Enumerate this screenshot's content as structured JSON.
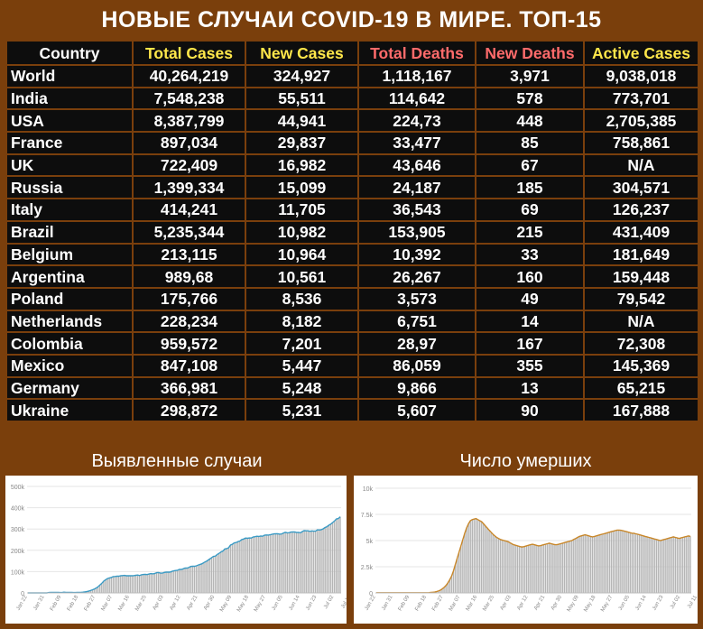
{
  "title": "НОВЫЕ СЛУЧАИ COVID-19 В МИРЕ. ТОП-15",
  "table": {
    "headers": [
      {
        "label": "Country",
        "color": "#ffffff"
      },
      {
        "label": "Total Cases",
        "color": "#ffe74a"
      },
      {
        "label": "New Cases",
        "color": "#ffe74a"
      },
      {
        "label": "Total Deaths",
        "color": "#ff6b6b"
      },
      {
        "label": "New Deaths",
        "color": "#ff6b6b"
      },
      {
        "label": "Active Cases",
        "color": "#ffe74a"
      }
    ],
    "rows": [
      [
        "World",
        "40,264,219",
        "324,927",
        "1,118,167",
        "3,971",
        "9,038,018"
      ],
      [
        "India",
        "7,548,238",
        "55,511",
        "114,642",
        "578",
        "773,701"
      ],
      [
        "USA",
        "8,387,799",
        "44,941",
        "224,73",
        "448",
        "2,705,385"
      ],
      [
        "France",
        "897,034",
        "29,837",
        "33,477",
        "85",
        "758,861"
      ],
      [
        "UK",
        "722,409",
        "16,982",
        "43,646",
        "67",
        "N/A"
      ],
      [
        "Russia",
        "1,399,334",
        "15,099",
        "24,187",
        "185",
        "304,571"
      ],
      [
        "Italy",
        "414,241",
        "11,705",
        "36,543",
        "69",
        "126,237"
      ],
      [
        "Brazil",
        "5,235,344",
        "10,982",
        "153,905",
        "215",
        "431,409"
      ],
      [
        "Belgium",
        "213,115",
        "10,964",
        "10,392",
        "33",
        "181,649"
      ],
      [
        "Argentina",
        "989,68",
        "10,561",
        "26,267",
        "160",
        "159,448"
      ],
      [
        "Poland",
        "175,766",
        "8,536",
        "3,573",
        "49",
        "79,542"
      ],
      [
        "Netherlands",
        "228,234",
        "8,182",
        "6,751",
        "14",
        "N/A"
      ],
      [
        "Colombia",
        "959,572",
        "7,201",
        "28,97",
        "167",
        "72,308"
      ],
      [
        "Mexico",
        "847,108",
        "5,447",
        "86,059",
        "355",
        "145,369"
      ],
      [
        "Germany",
        "366,981",
        "5,248",
        "9,866",
        "13",
        "65,215"
      ],
      [
        "Ukraine",
        "298,872",
        "5,231",
        "5,607",
        "90",
        "167,888"
      ]
    ]
  },
  "panels": {
    "left_title": "Выявленные случаи",
    "right_title": "Число умерших"
  },
  "chart_data": [
    {
      "type": "bar",
      "line_color": "#3a9ac4",
      "bar_color": "#b5b5b5",
      "ylim": [
        0,
        500000
      ],
      "yticks": [
        "0",
        "100k",
        "200k",
        "300k",
        "400k",
        "500k"
      ],
      "ytick_values": [
        0,
        100000,
        200000,
        300000,
        400000,
        500000
      ],
      "x_tick_labels": [
        "Jan 22",
        "Jan 31",
        "Feb 09",
        "Feb 18",
        "Feb 27",
        "Mar 07",
        "Mar 16",
        "Mar 25",
        "Apr 03",
        "Apr 12",
        "Apr 21",
        "Apr 30",
        "May 09",
        "May 18",
        "May 27",
        "Jun 05",
        "Jun 14",
        "Jun 23",
        "Jul 02",
        "Jul 11",
        "Jul 20",
        "Jul 29",
        "Aug 07",
        "Aug 16",
        "Aug 25",
        "Sep 03",
        "Sep 12",
        "Sep 21",
        "Sep 30",
        "Oct 09",
        "Oct 18"
      ],
      "x_tick_positions": [
        0,
        9,
        18,
        27,
        36,
        45,
        54,
        63,
        72,
        81,
        90,
        99,
        108,
        117,
        126,
        135,
        144,
        153,
        162,
        171,
        180,
        189,
        198,
        207,
        216,
        225,
        234,
        243,
        252,
        261,
        270
      ],
      "moving_average": [
        0,
        0,
        0,
        0,
        0,
        0,
        0,
        0,
        0,
        0,
        0,
        1500,
        2000,
        2500,
        2000,
        2500,
        2000,
        1500,
        1500,
        3500,
        2000,
        2500,
        2500,
        2000,
        1500,
        1500,
        2000,
        2500,
        2500,
        3500,
        4500,
        6000,
        8000,
        11000,
        14500,
        18000,
        23000,
        28500,
        37000,
        45000,
        55000,
        62000,
        67500,
        70500,
        72000,
        76500,
        77000,
        79000,
        78500,
        80500,
        81500,
        82000,
        80500,
        80500,
        80500,
        80500,
        81500,
        82500,
        84000,
        81500,
        85000,
        86500,
        87000,
        86000,
        89000,
        90500,
        89500,
        91000,
        95000,
        95500,
        93000,
        93000,
        96000,
        97500,
        97500,
        97500,
        101000,
        104000,
        105000,
        106500,
        110000,
        110000,
        113000,
        117000,
        116500,
        119000,
        124000,
        125000,
        125000,
        127000,
        131000,
        134000,
        137000,
        143000,
        147000,
        152500,
        159000,
        165000,
        171500,
        172500,
        180500,
        185500,
        192500,
        196000,
        206500,
        207500,
        212000,
        224500,
        228500,
        235000,
        236500,
        240500,
        243500,
        250500,
        253000,
        257500,
        256500,
        258000,
        257500,
        262500,
        264000,
        266000,
        265000,
        267000,
        266000,
        271000,
        272000,
        271500,
        273000,
        275500,
        277000,
        277500,
        278000,
        276000,
        276500,
        281500,
        284500,
        282000,
        282500,
        285500,
        286000,
        286500,
        283500,
        284500,
        282000,
        288000,
        292500,
        291500,
        291500,
        289000,
        291000,
        290000,
        290000,
        296000,
        295500,
        297000,
        301000,
        307000,
        311000,
        318000,
        323000,
        330000,
        337500,
        347500,
        349000,
        357500
      ],
      "values": [
        0,
        0,
        0,
        0,
        0,
        0,
        0,
        0,
        0,
        0,
        0,
        1500,
        2000,
        2500,
        2000,
        2500,
        2000,
        1500,
        1500,
        3500,
        2000,
        2500,
        2500,
        2000,
        1500,
        1500,
        2000,
        2500,
        2500,
        3500,
        4500,
        6000,
        8000,
        11000,
        14500,
        18000,
        23000,
        28500,
        37000,
        45000,
        55000,
        62000,
        67500,
        70500,
        72000,
        76500,
        77000,
        79000,
        78500,
        80500,
        81500,
        82000,
        80500,
        80500,
        80500,
        80500,
        81500,
        82500,
        84000,
        81500,
        85000,
        86500,
        87000,
        86000,
        89000,
        90500,
        89500,
        91000,
        95000,
        95500,
        93000,
        93000,
        96000,
        97500,
        97500,
        97500,
        101000,
        104000,
        105000,
        106500,
        110000,
        110000,
        113000,
        117000,
        116500,
        119000,
        124000,
        125000,
        125000,
        127000,
        131000,
        134000,
        137000,
        143000,
        147000,
        152500,
        159000,
        165000,
        171500,
        172500,
        180500,
        185500,
        192500,
        196000,
        206500,
        207500,
        212000,
        224500,
        228500,
        235000,
        236500,
        240500,
        243500,
        250500,
        253000,
        257500,
        256500,
        258000,
        257500,
        262500,
        264000,
        266000,
        265000,
        267000,
        266000,
        271000,
        272000,
        271500,
        273000,
        275500,
        277000,
        277500,
        278000,
        276000,
        276500,
        281500,
        284500,
        282000,
        282500,
        285500,
        286000,
        286500,
        283500,
        284500,
        282000,
        288000,
        292500,
        291500,
        291500,
        289000,
        291000,
        290000,
        290000,
        296000,
        295500,
        297000,
        301000,
        307000,
        311000,
        318000,
        323000,
        330000,
        337500,
        347500,
        349000,
        357500
      ]
    },
    {
      "type": "bar",
      "line_color": "#c8872a",
      "bar_color": "#b5b5b5",
      "ylim": [
        0,
        10000
      ],
      "yticks": [
        "0",
        "2.5k",
        "5k",
        "7.5k",
        "10k"
      ],
      "ytick_values": [
        0,
        2500,
        5000,
        7500,
        10000
      ],
      "x_tick_labels": [
        "Jan 22",
        "Jan 31",
        "Feb 09",
        "Feb 18",
        "Feb 27",
        "Mar 07",
        "Mar 16",
        "Mar 25",
        "Apr 03",
        "Apr 12",
        "Apr 21",
        "Apr 30",
        "May 09",
        "May 18",
        "May 27",
        "Jun 05",
        "Jun 14",
        "Jun 23",
        "Jul 02",
        "Jul 11",
        "Jul 20",
        "Jul 29",
        "Aug 07",
        "Aug 16",
        "Aug 25",
        "Sep 03",
        "Sep 12",
        "Sep 21",
        "Sep 30",
        "Oct 09",
        "Oct 18"
      ],
      "x_tick_positions": [
        0,
        9,
        18,
        27,
        36,
        45,
        54,
        63,
        72,
        81,
        90,
        99,
        108,
        117,
        126,
        135,
        144,
        153,
        162,
        171,
        180,
        189,
        198,
        207,
        216,
        225,
        234,
        243,
        252,
        261,
        270
      ],
      "moving_average": [
        20,
        20,
        20,
        20,
        20,
        20,
        20,
        20,
        20,
        20,
        20,
        20,
        20,
        20,
        20,
        20,
        20,
        20,
        20,
        20,
        20,
        20,
        20,
        20,
        20,
        20,
        20,
        20,
        30,
        40,
        60,
        80,
        120,
        180,
        260,
        380,
        520,
        700,
        950,
        1250,
        1600,
        2100,
        2700,
        3300,
        3900,
        4500,
        5100,
        5700,
        6200,
        6600,
        6900,
        7000,
        7050,
        7100,
        7000,
        6900,
        6800,
        6600,
        6400,
        6200,
        6000,
        5800,
        5600,
        5450,
        5300,
        5200,
        5100,
        5050,
        5000,
        4950,
        4900,
        4800,
        4700,
        4600,
        4550,
        4500,
        4450,
        4400,
        4400,
        4450,
        4500,
        4550,
        4600,
        4650,
        4600,
        4550,
        4500,
        4500,
        4550,
        4600,
        4650,
        4700,
        4750,
        4700,
        4650,
        4600,
        4600,
        4650,
        4700,
        4750,
        4800,
        4850,
        4900,
        4950,
        5000,
        5100,
        5200,
        5300,
        5400,
        5450,
        5500,
        5550,
        5500,
        5450,
        5400,
        5350,
        5400,
        5450,
        5500,
        5550,
        5600,
        5650,
        5700,
        5750,
        5800,
        5850,
        5900,
        5950,
        6000,
        6000,
        5980,
        5950,
        5900,
        5850,
        5800,
        5750,
        5700,
        5700,
        5650,
        5600,
        5550,
        5500,
        5450,
        5400,
        5350,
        5300,
        5250,
        5200,
        5150,
        5100,
        5050,
        5000,
        5050,
        5100,
        5150,
        5200,
        5250,
        5300,
        5350,
        5300,
        5250,
        5200,
        5250,
        5300,
        5350,
        5400,
        5450,
        5400
      ],
      "values": [
        20,
        20,
        20,
        20,
        20,
        20,
        20,
        20,
        20,
        20,
        20,
        20,
        20,
        20,
        20,
        20,
        20,
        20,
        20,
        20,
        20,
        20,
        20,
        20,
        20,
        20,
        20,
        20,
        30,
        40,
        60,
        80,
        120,
        180,
        260,
        380,
        520,
        700,
        950,
        1250,
        1600,
        2100,
        2700,
        3300,
        3900,
        4500,
        5100,
        5700,
        6200,
        6600,
        6900,
        7000,
        7050,
        7100,
        7000,
        6900,
        6800,
        6600,
        6400,
        6200,
        6000,
        5800,
        5600,
        5450,
        5300,
        5200,
        5100,
        5050,
        5000,
        4950,
        4900,
        4800,
        4700,
        4600,
        4550,
        4500,
        4450,
        4400,
        4400,
        4450,
        4500,
        4550,
        4600,
        4650,
        4600,
        4550,
        4500,
        4500,
        4550,
        4600,
        4650,
        4700,
        4750,
        4700,
        4650,
        4600,
        4600,
        4650,
        4700,
        4750,
        4800,
        4850,
        4900,
        4950,
        5000,
        5100,
        5200,
        5300,
        5400,
        5450,
        5500,
        5550,
        5500,
        5450,
        5400,
        5350,
        5400,
        5450,
        5500,
        5550,
        5600,
        5650,
        5700,
        5750,
        5800,
        5850,
        5900,
        5950,
        6000,
        6000,
        5980,
        5950,
        5900,
        5850,
        5800,
        5750,
        5700,
        5700,
        5650,
        5600,
        5550,
        5500,
        5450,
        5400,
        5350,
        5300,
        5250,
        5200,
        5150,
        5100,
        5050,
        5000,
        5050,
        5100,
        5150,
        5200,
        5250,
        5300,
        5350,
        5300,
        5250,
        5200,
        5250,
        5300,
        5350,
        5400,
        5450,
        5400
      ]
    }
  ]
}
